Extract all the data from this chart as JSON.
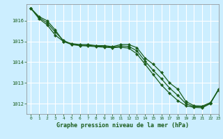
{
  "title": "Graphe pression niveau de la mer (hPa)",
  "background_color": "#cceeff",
  "grid_color": "#ffffff",
  "line_color": "#1a5c1a",
  "xlim": [
    -0.5,
    23
  ],
  "ylim": [
    1011.5,
    1016.8
  ],
  "yticks": [
    1012,
    1013,
    1014,
    1015,
    1016
  ],
  "xticks": [
    0,
    1,
    2,
    3,
    4,
    5,
    6,
    7,
    8,
    9,
    10,
    11,
    12,
    13,
    14,
    15,
    16,
    17,
    18,
    19,
    20,
    21,
    22,
    23
  ],
  "series": {
    "line1": [
      1016.6,
      1016.2,
      1016.0,
      1015.55,
      1015.0,
      1014.9,
      1014.85,
      1014.85,
      1014.8,
      1014.8,
      1014.75,
      1014.85,
      1014.85,
      1014.7,
      1014.2,
      1013.9,
      1013.5,
      1013.0,
      1012.7,
      1012.1,
      1011.9,
      1011.88,
      1012.05,
      1012.65
    ],
    "line2": [
      1016.6,
      1016.1,
      1015.8,
      1015.3,
      1015.0,
      1014.85,
      1014.8,
      1014.78,
      1014.75,
      1014.72,
      1014.7,
      1014.72,
      1014.68,
      1014.4,
      1013.9,
      1013.4,
      1012.9,
      1012.5,
      1012.15,
      1011.9,
      1011.82,
      1011.8,
      1012.0,
      1012.7
    ],
    "line3": [
      1016.6,
      1016.15,
      1015.9,
      1015.45,
      1015.05,
      1014.87,
      1014.82,
      1014.81,
      1014.78,
      1014.76,
      1014.72,
      1014.78,
      1014.76,
      1014.55,
      1014.05,
      1013.6,
      1013.2,
      1012.75,
      1012.4,
      1012.0,
      1011.85,
      1011.84,
      1012.02,
      1012.68
    ]
  }
}
